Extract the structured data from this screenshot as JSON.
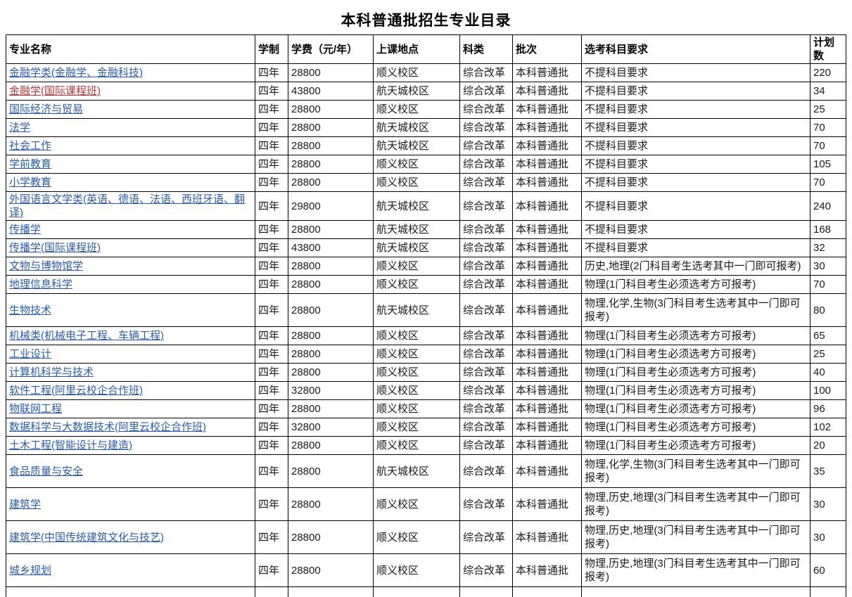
{
  "page": {
    "title": "本科普通批招生专业目录"
  },
  "colors": {
    "link_blue": "#2A5CAA",
    "link_red": "#B03939",
    "border": "#000000",
    "text": "#1a1a1a"
  },
  "table": {
    "columns": [
      {
        "key": "name",
        "label": "专业名称"
      },
      {
        "key": "duration",
        "label": "学制"
      },
      {
        "key": "tuition",
        "label": "学费（元/年）"
      },
      {
        "key": "location",
        "label": "上课地点"
      },
      {
        "key": "category",
        "label": "科类"
      },
      {
        "key": "batch",
        "label": "批次"
      },
      {
        "key": "requirement",
        "label": "选考科目要求"
      },
      {
        "key": "plan",
        "label": "计划数"
      }
    ],
    "rows": [
      {
        "name": "金融学类(金融学、金融科技)",
        "duration": "四年",
        "tuition": "28800",
        "location": "顺义校区",
        "category": "综合改革",
        "batch": "本科普通批",
        "requirement": "不提科目要求",
        "plan": "220"
      },
      {
        "name": "金融学(国际课程班)",
        "visited": true,
        "duration": "四年",
        "tuition": "43800",
        "location": "航天城校区",
        "category": "综合改革",
        "batch": "本科普通批",
        "requirement": "不提科目要求",
        "plan": "34"
      },
      {
        "name": "国际经济与贸易",
        "duration": "四年",
        "tuition": "28800",
        "location": "顺义校区",
        "category": "综合改革",
        "batch": "本科普通批",
        "requirement": "不提科目要求",
        "plan": "25"
      },
      {
        "name": "法学",
        "duration": "四年",
        "tuition": "28800",
        "location": "航天城校区",
        "category": "综合改革",
        "batch": "本科普通批",
        "requirement": "不提科目要求",
        "plan": "70"
      },
      {
        "name": "社会工作",
        "duration": "四年",
        "tuition": "28800",
        "location": "航天城校区",
        "category": "综合改革",
        "batch": "本科普通批",
        "requirement": "不提科目要求",
        "plan": "70"
      },
      {
        "name": "学前教育",
        "duration": "四年",
        "tuition": "28800",
        "location": "顺义校区",
        "category": "综合改革",
        "batch": "本科普通批",
        "requirement": "不提科目要求",
        "plan": "105"
      },
      {
        "name": "小学教育",
        "duration": "四年",
        "tuition": "28800",
        "location": "顺义校区",
        "category": "综合改革",
        "batch": "本科普通批",
        "requirement": "不提科目要求",
        "plan": "70"
      },
      {
        "name": "外国语言文学类(英语、德语、法语、西班牙语、翻译)",
        "duration": "四年",
        "tuition": "29800",
        "location": "航天城校区",
        "category": "综合改革",
        "batch": "本科普通批",
        "requirement": "不提科目要求",
        "plan": "240"
      },
      {
        "name": "传播学",
        "duration": "四年",
        "tuition": "28800",
        "location": "航天城校区",
        "category": "综合改革",
        "batch": "本科普通批",
        "requirement": "不提科目要求",
        "plan": "168"
      },
      {
        "name": "传播学(国际课程班)",
        "duration": "四年",
        "tuition": "43800",
        "location": "航天城校区",
        "category": "综合改革",
        "batch": "本科普通批",
        "requirement": "不提科目要求",
        "plan": "32"
      },
      {
        "name": "文物与博物馆学",
        "duration": "四年",
        "tuition": "28800",
        "location": "顺义校区",
        "category": "综合改革",
        "batch": "本科普通批",
        "requirement": "历史,地理(2门科目考生选考其中一门即可报考)",
        "plan": "30"
      },
      {
        "name": "地理信息科学",
        "duration": "四年",
        "tuition": "28800",
        "location": "顺义校区",
        "category": "综合改革",
        "batch": "本科普通批",
        "requirement": "物理(1门科目考生必须选考方可报考)",
        "plan": "70"
      },
      {
        "name": "生物技术",
        "tall": true,
        "duration": "四年",
        "tuition": "28800",
        "location": "航天城校区",
        "category": "综合改革",
        "batch": "本科普通批",
        "requirement": "物理,化学,生物(3门科目考生选考其中一门即可报考)",
        "plan": "80"
      },
      {
        "name": "机械类(机械电子工程、车辆工程)",
        "duration": "四年",
        "tuition": "28800",
        "location": "顺义校区",
        "category": "综合改革",
        "batch": "本科普通批",
        "requirement": "物理(1门科目考生必须选考方可报考)",
        "plan": "65"
      },
      {
        "name": "工业设计",
        "duration": "四年",
        "tuition": "28800",
        "location": "顺义校区",
        "category": "综合改革",
        "batch": "本科普通批",
        "requirement": "物理(1门科目考生必须选考方可报考)",
        "plan": "25"
      },
      {
        "name": "计算机科学与技术",
        "duration": "四年",
        "tuition": "28800",
        "location": "顺义校区",
        "category": "综合改革",
        "batch": "本科普通批",
        "requirement": "物理(1门科目考生必须选考方可报考)",
        "plan": "40"
      },
      {
        "name": "软件工程(阿里云校企合作班)",
        "duration": "四年",
        "tuition": "32800",
        "location": "顺义校区",
        "category": "综合改革",
        "batch": "本科普通批",
        "requirement": "物理(1门科目考生必须选考方可报考)",
        "plan": "100"
      },
      {
        "name": "物联网工程",
        "duration": "四年",
        "tuition": "28800",
        "location": "顺义校区",
        "category": "综合改革",
        "batch": "本科普通批",
        "requirement": "物理(1门科目考生必须选考方可报考)",
        "plan": "96"
      },
      {
        "name": "数据科学与大数据技术(阿里云校企合作班)",
        "duration": "四年",
        "tuition": "32800",
        "location": "顺义校区",
        "category": "综合改革",
        "batch": "本科普通批",
        "requirement": "物理(1门科目考生必须选考方可报考)",
        "plan": "102"
      },
      {
        "name": "土木工程(智能设计与建造)",
        "duration": "四年",
        "tuition": "28800",
        "location": "顺义校区",
        "category": "综合改革",
        "batch": "本科普通批",
        "requirement": "物理(1门科目考生必须选考方可报考)",
        "plan": "20"
      },
      {
        "name": "食品质量与安全",
        "tall": true,
        "duration": "四年",
        "tuition": "28800",
        "location": "航天城校区",
        "category": "综合改革",
        "batch": "本科普通批",
        "requirement": "物理,化学,生物(3门科目考生选考其中一门即可报考)",
        "plan": "35"
      },
      {
        "name": "建筑学",
        "tall": true,
        "duration": "四年",
        "tuition": "28800",
        "location": "顺义校区",
        "category": "综合改革",
        "batch": "本科普通批",
        "requirement": "物理,历史,地理(3门科目考生选考其中一门即可报考)",
        "plan": "30"
      },
      {
        "name": "建筑学(中国传统建筑文化与技艺)",
        "tall": true,
        "duration": "四年",
        "tuition": "28800",
        "location": "顺义校区",
        "category": "综合改革",
        "batch": "本科普通批",
        "requirement": "物理,历史,地理(3门科目考生选考其中一门即可报考)",
        "plan": "30"
      },
      {
        "name": "城乡规划",
        "tall": true,
        "duration": "四年",
        "tuition": "28800",
        "location": "顺义校区",
        "category": "综合改革",
        "batch": "本科普通批",
        "requirement": "物理,历史,地理(3门科目考生选考其中一门即可报考)",
        "plan": "60"
      },
      {
        "name": "",
        "partial": true,
        "duration": "",
        "tuition": "",
        "location": "",
        "category": "",
        "batch": "",
        "requirement": "",
        "plan": ""
      }
    ]
  }
}
